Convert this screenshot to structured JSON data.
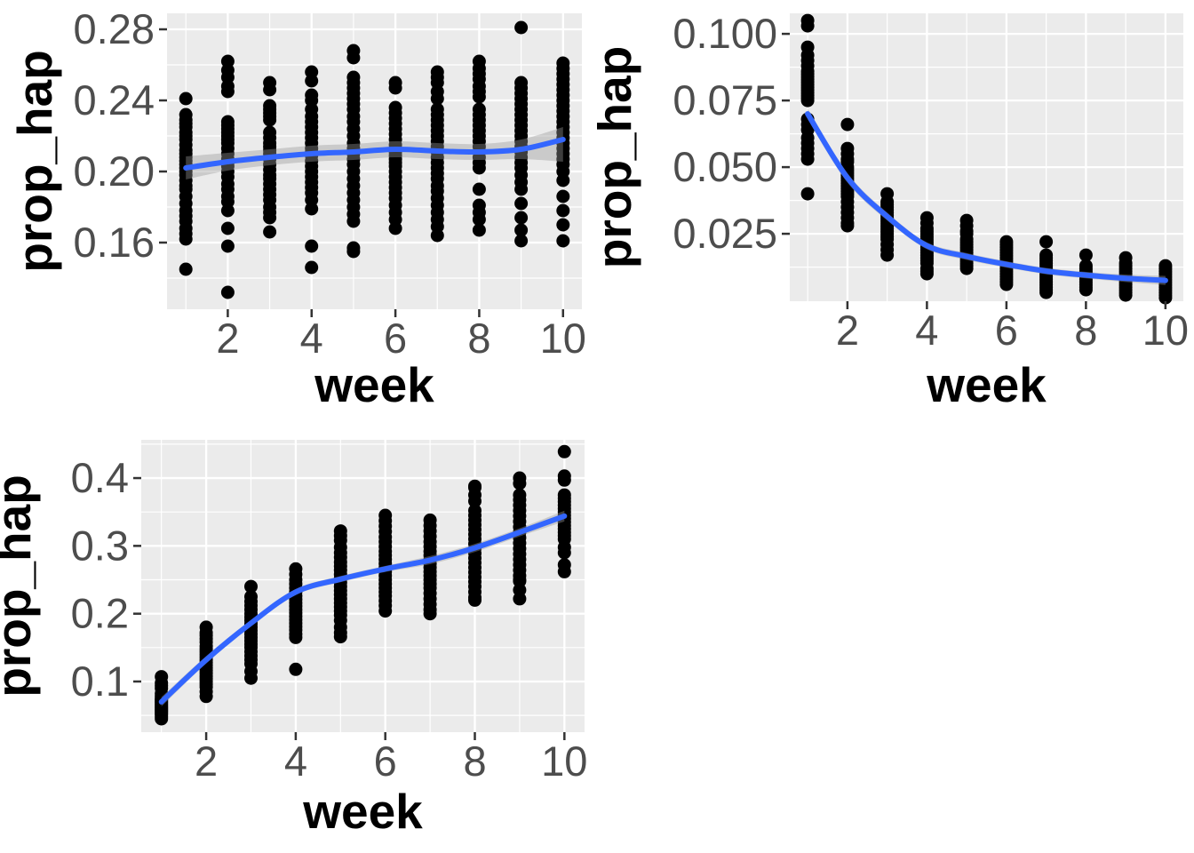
{
  "figure": {
    "background": "#FFFFFF"
  },
  "style": {
    "panel_bg": "#EBEBEB",
    "grid_color": "#FFFFFF",
    "point_color": "#000000",
    "smooth_color": "#3366FF",
    "ribbon_color": "#999999",
    "ribbon_alpha": 0.4,
    "axis_text_color": "#4D4D4D",
    "axis_title_color": "#000000",
    "tick_color": "#333333"
  },
  "chart_data": [
    {
      "id": "top-left",
      "type": "scatter",
      "title": "",
      "xlabel": "week",
      "ylabel": "prop_hap",
      "legend": "none",
      "grid": true,
      "xlim": [
        0.55,
        10.45
      ],
      "ylim": [
        0.1225,
        0.289
      ],
      "x_ticks": {
        "values": [
          2,
          4,
          6,
          8,
          10
        ],
        "labels": [
          "2",
          "4",
          "6",
          "8",
          "10"
        ]
      },
      "x_minor": [
        1,
        3,
        5,
        7,
        9
      ],
      "y_ticks": {
        "values": [
          0.16,
          0.2,
          0.24,
          0.28
        ],
        "labels": [
          "0.16",
          "0.20",
          "0.24",
          "0.28"
        ]
      },
      "y_minor": [
        0.14,
        0.18,
        0.22,
        0.26
      ],
      "weeks": [
        1,
        2,
        3,
        4,
        5,
        6,
        7,
        8,
        9,
        10
      ],
      "points_by_week": [
        [
          0.241,
          0.232,
          0.229,
          0.227,
          0.225,
          0.222,
          0.22,
          0.218,
          0.215,
          0.212,
          0.21,
          0.208,
          0.206,
          0.204,
          0.202,
          0.2,
          0.198,
          0.195,
          0.192,
          0.19,
          0.186,
          0.182,
          0.178,
          0.175,
          0.172,
          0.168,
          0.165,
          0.162,
          0.145
        ],
        [
          0.262,
          0.257,
          0.253,
          0.248,
          0.245,
          0.228,
          0.226,
          0.224,
          0.222,
          0.22,
          0.218,
          0.216,
          0.213,
          0.21,
          0.207,
          0.205,
          0.203,
          0.2,
          0.197,
          0.193,
          0.19,
          0.186,
          0.183,
          0.178,
          0.168,
          0.158,
          0.132
        ],
        [
          0.25,
          0.246,
          0.237,
          0.235,
          0.233,
          0.231,
          0.229,
          0.222,
          0.219,
          0.216,
          0.214,
          0.212,
          0.21,
          0.207,
          0.204,
          0.201,
          0.198,
          0.196,
          0.193,
          0.19,
          0.187,
          0.184,
          0.18,
          0.177,
          0.174,
          0.166
        ],
        [
          0.256,
          0.251,
          0.243,
          0.24,
          0.235,
          0.231,
          0.228,
          0.225,
          0.222,
          0.219,
          0.216,
          0.213,
          0.211,
          0.209,
          0.206,
          0.203,
          0.2,
          0.197,
          0.194,
          0.191,
          0.188,
          0.184,
          0.179,
          0.158,
          0.146
        ],
        [
          0.268,
          0.264,
          0.253,
          0.25,
          0.247,
          0.244,
          0.241,
          0.238,
          0.235,
          0.231,
          0.228,
          0.224,
          0.22,
          0.216,
          0.213,
          0.21,
          0.207,
          0.204,
          0.2,
          0.196,
          0.192,
          0.188,
          0.184,
          0.18,
          0.176,
          0.172,
          0.157,
          0.155
        ],
        [
          0.25,
          0.247,
          0.236,
          0.233,
          0.23,
          0.227,
          0.224,
          0.221,
          0.218,
          0.215,
          0.213,
          0.211,
          0.209,
          0.207,
          0.205,
          0.203,
          0.2,
          0.197,
          0.194,
          0.191,
          0.188,
          0.185,
          0.181,
          0.177,
          0.173,
          0.168
        ],
        [
          0.256,
          0.253,
          0.25,
          0.245,
          0.241,
          0.235,
          0.232,
          0.229,
          0.226,
          0.223,
          0.22,
          0.217,
          0.214,
          0.211,
          0.208,
          0.205,
          0.202,
          0.199,
          0.196,
          0.192,
          0.189,
          0.185,
          0.181,
          0.177,
          0.173,
          0.169,
          0.164
        ],
        [
          0.262,
          0.258,
          0.255,
          0.252,
          0.248,
          0.245,
          0.242,
          0.235,
          0.232,
          0.229,
          0.226,
          0.223,
          0.22,
          0.217,
          0.214,
          0.211,
          0.208,
          0.205,
          0.202,
          0.19,
          0.181,
          0.177,
          0.173,
          0.167
        ],
        [
          0.281,
          0.25,
          0.247,
          0.244,
          0.241,
          0.238,
          0.235,
          0.232,
          0.229,
          0.226,
          0.223,
          0.22,
          0.217,
          0.214,
          0.211,
          0.208,
          0.205,
          0.202,
          0.198,
          0.194,
          0.19,
          0.182,
          0.174,
          0.167,
          0.161
        ],
        [
          0.261,
          0.258,
          0.255,
          0.252,
          0.249,
          0.246,
          0.243,
          0.24,
          0.237,
          0.234,
          0.231,
          0.228,
          0.225,
          0.222,
          0.219,
          0.216,
          0.213,
          0.21,
          0.207,
          0.204,
          0.2,
          0.195,
          0.186,
          0.178,
          0.17,
          0.161
        ]
      ],
      "smooth": {
        "x": [
          1,
          2,
          3,
          4,
          5,
          6,
          7,
          8,
          9,
          10
        ],
        "y": [
          0.202,
          0.2055,
          0.208,
          0.21,
          0.211,
          0.2125,
          0.2115,
          0.211,
          0.2125,
          0.218
        ],
        "upper": [
          0.2085,
          0.2105,
          0.2125,
          0.2145,
          0.2155,
          0.217,
          0.216,
          0.2155,
          0.218,
          0.225
        ],
        "lower": [
          0.1955,
          0.2005,
          0.2035,
          0.2055,
          0.2065,
          0.208,
          0.207,
          0.2065,
          0.207,
          0.2055
        ]
      }
    },
    {
      "id": "top-right",
      "type": "scatter",
      "title": "",
      "xlabel": "week",
      "ylabel": "prop_hap",
      "legend": "none",
      "grid": true,
      "xlim": [
        0.55,
        10.45
      ],
      "ylim": [
        -0.0003,
        0.1077
      ],
      "x_ticks": {
        "values": [
          2,
          4,
          6,
          8,
          10
        ],
        "labels": [
          "2",
          "4",
          "6",
          "8",
          "10"
        ]
      },
      "x_minor": [
        1,
        3,
        5,
        7,
        9
      ],
      "y_ticks": {
        "values": [
          0.025,
          0.05,
          0.075,
          0.1
        ],
        "labels": [
          "0.025",
          "0.050",
          "0.075",
          "0.100"
        ]
      },
      "y_minor": [
        0.0125,
        0.0375,
        0.0625,
        0.0875
      ],
      "weeks": [
        1,
        2,
        3,
        4,
        5,
        6,
        7,
        8,
        9,
        10
      ],
      "points_by_week": [
        [
          0.105,
          0.103,
          0.095,
          0.092,
          0.09,
          0.088,
          0.086,
          0.085,
          0.084,
          0.083,
          0.082,
          0.081,
          0.08,
          0.079,
          0.078,
          0.077,
          0.076,
          0.075,
          0.068,
          0.066,
          0.064,
          0.061,
          0.059,
          0.057,
          0.055,
          0.053,
          0.04
        ],
        [
          0.066,
          0.057,
          0.055,
          0.053,
          0.052,
          0.05,
          0.049,
          0.048,
          0.047,
          0.046,
          0.045,
          0.044,
          0.043,
          0.042,
          0.041,
          0.04,
          0.039,
          0.037,
          0.035,
          0.033,
          0.031,
          0.029,
          0.028
        ],
        [
          0.04,
          0.037,
          0.036,
          0.035,
          0.034,
          0.033,
          0.032,
          0.031,
          0.03,
          0.029,
          0.028,
          0.027,
          0.026,
          0.025,
          0.024,
          0.023,
          0.021,
          0.019,
          0.017
        ],
        [
          0.031,
          0.029,
          0.027,
          0.026,
          0.025,
          0.024,
          0.023,
          0.022,
          0.021,
          0.02,
          0.019,
          0.018,
          0.017,
          0.016,
          0.015,
          0.014,
          0.012,
          0.011,
          0.01
        ],
        [
          0.03,
          0.028,
          0.026,
          0.025,
          0.023,
          0.022,
          0.021,
          0.02,
          0.019,
          0.018,
          0.017,
          0.016,
          0.015,
          0.014,
          0.013,
          0.012
        ],
        [
          0.022,
          0.021,
          0.02,
          0.019,
          0.018,
          0.017,
          0.016,
          0.015,
          0.014,
          0.013,
          0.012,
          0.011,
          0.01,
          0.009,
          0.008,
          0.007,
          0.006
        ],
        [
          0.022,
          0.017,
          0.016,
          0.015,
          0.014,
          0.013,
          0.012,
          0.011,
          0.01,
          0.009,
          0.008,
          0.007,
          0.006,
          0.005,
          0.004,
          0.003
        ],
        [
          0.017,
          0.013,
          0.012,
          0.011,
          0.01,
          0.009,
          0.008,
          0.007,
          0.006,
          0.005,
          0.004
        ],
        [
          0.016,
          0.014,
          0.013,
          0.012,
          0.011,
          0.01,
          0.009,
          0.008,
          0.007,
          0.006,
          0.005,
          0.004,
          0.003,
          0.002
        ],
        [
          0.013,
          0.012,
          0.011,
          0.01,
          0.009,
          0.008,
          0.007,
          0.006,
          0.005,
          0.004,
          0.003,
          0.002,
          0.001
        ]
      ],
      "smooth": {
        "x": [
          1,
          2,
          3,
          4,
          5,
          6,
          7,
          8,
          9,
          10
        ],
        "y": [
          0.07,
          0.046,
          0.0315,
          0.0205,
          0.0165,
          0.0135,
          0.011,
          0.0095,
          0.0083,
          0.0075
        ],
        "upper": [
          0.072,
          0.0478,
          0.033,
          0.0218,
          0.0178,
          0.0147,
          0.0122,
          0.0107,
          0.0097,
          0.0092
        ],
        "lower": [
          0.068,
          0.0442,
          0.03,
          0.0192,
          0.0152,
          0.0123,
          0.0098,
          0.0083,
          0.0069,
          0.0058
        ]
      }
    },
    {
      "id": "bottom-left",
      "type": "scatter",
      "title": "",
      "xlabel": "week",
      "ylabel": "prop_hap",
      "legend": "none",
      "grid": true,
      "xlim": [
        0.55,
        10.45
      ],
      "ylim": [
        0.0253,
        0.4564
      ],
      "x_ticks": {
        "values": [
          2,
          4,
          6,
          8,
          10
        ],
        "labels": [
          "2",
          "4",
          "6",
          "8",
          "10"
        ]
      },
      "x_minor": [
        1,
        3,
        5,
        7,
        9
      ],
      "y_ticks": {
        "values": [
          0.1,
          0.2,
          0.3,
          0.4
        ],
        "labels": [
          "0.1",
          "0.2",
          "0.3",
          "0.4"
        ]
      },
      "y_minor": [
        0.05,
        0.15,
        0.25,
        0.35,
        0.45
      ],
      "weeks": [
        1,
        2,
        3,
        4,
        5,
        6,
        7,
        8,
        9,
        10
      ],
      "points_by_week": [
        [
          0.107,
          0.098,
          0.094,
          0.09,
          0.082,
          0.078,
          0.075,
          0.073,
          0.071,
          0.069,
          0.067,
          0.065,
          0.063,
          0.061,
          0.059,
          0.057,
          0.055,
          0.053,
          0.051,
          0.048,
          0.045
        ],
        [
          0.18,
          0.172,
          0.168,
          0.163,
          0.158,
          0.152,
          0.148,
          0.144,
          0.14,
          0.136,
          0.132,
          0.128,
          0.124,
          0.12,
          0.116,
          0.112,
          0.108,
          0.104,
          0.1,
          0.096,
          0.092,
          0.085,
          0.078
        ],
        [
          0.24,
          0.225,
          0.218,
          0.212,
          0.206,
          0.2,
          0.195,
          0.19,
          0.185,
          0.18,
          0.175,
          0.17,
          0.165,
          0.16,
          0.155,
          0.15,
          0.144,
          0.138,
          0.132,
          0.126,
          0.115,
          0.105
        ],
        [
          0.266,
          0.258,
          0.25,
          0.244,
          0.238,
          0.232,
          0.226,
          0.221,
          0.216,
          0.211,
          0.206,
          0.201,
          0.196,
          0.191,
          0.186,
          0.181,
          0.176,
          0.17,
          0.165,
          0.118
        ],
        [
          0.322,
          0.315,
          0.308,
          0.298,
          0.29,
          0.283,
          0.276,
          0.27,
          0.264,
          0.258,
          0.252,
          0.246,
          0.24,
          0.234,
          0.228,
          0.222,
          0.216,
          0.21,
          0.204,
          0.198,
          0.19,
          0.18,
          0.172,
          0.166
        ],
        [
          0.345,
          0.337,
          0.329,
          0.321,
          0.313,
          0.306,
          0.299,
          0.292,
          0.286,
          0.28,
          0.274,
          0.268,
          0.262,
          0.256,
          0.25,
          0.244,
          0.238,
          0.232,
          0.226,
          0.219,
          0.212,
          0.204
        ],
        [
          0.338,
          0.33,
          0.322,
          0.314,
          0.306,
          0.299,
          0.292,
          0.286,
          0.28,
          0.274,
          0.268,
          0.262,
          0.256,
          0.25,
          0.244,
          0.238,
          0.23,
          0.222,
          0.214,
          0.206,
          0.2
        ],
        [
          0.388,
          0.386,
          0.375,
          0.366,
          0.352,
          0.345,
          0.338,
          0.331,
          0.324,
          0.317,
          0.31,
          0.303,
          0.296,
          0.289,
          0.282,
          0.275,
          0.268,
          0.261,
          0.254,
          0.247,
          0.24,
          0.232,
          0.224,
          0.22
        ],
        [
          0.4,
          0.392,
          0.375,
          0.368,
          0.36,
          0.352,
          0.344,
          0.336,
          0.328,
          0.32,
          0.312,
          0.304,
          0.296,
          0.288,
          0.28,
          0.272,
          0.264,
          0.256,
          0.25,
          0.248,
          0.235,
          0.222
        ],
        [
          0.439,
          0.403,
          0.397,
          0.375,
          0.37,
          0.365,
          0.36,
          0.355,
          0.35,
          0.345,
          0.34,
          0.335,
          0.33,
          0.325,
          0.32,
          0.315,
          0.31,
          0.298,
          0.29,
          0.272,
          0.262
        ]
      ],
      "smooth": {
        "x": [
          1,
          2,
          3,
          4,
          5,
          6,
          7,
          8,
          9,
          10
        ],
        "y": [
          0.07,
          0.132,
          0.186,
          0.232,
          0.251,
          0.266,
          0.279,
          0.297,
          0.32,
          0.344
        ],
        "upper": [
          0.077,
          0.1375,
          0.1905,
          0.2365,
          0.2555,
          0.2705,
          0.285,
          0.303,
          0.326,
          0.352
        ],
        "lower": [
          0.063,
          0.1265,
          0.1815,
          0.2275,
          0.2465,
          0.2615,
          0.273,
          0.291,
          0.314,
          0.336
        ]
      }
    }
  ]
}
